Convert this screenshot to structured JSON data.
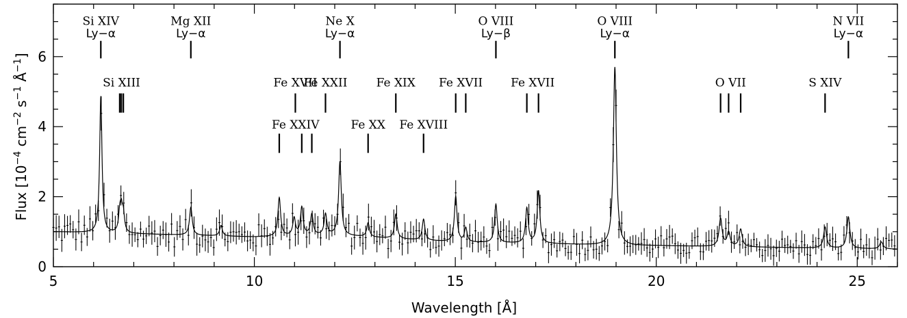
{
  "chart_data": {
    "type": "scatter",
    "xlabel": "Wavelength [Å]",
    "ylabel_parts": [
      "Flux [10",
      "−4",
      " cm",
      "−2",
      " s",
      "−1",
      " Å",
      "−1",
      "]"
    ],
    "xlim": [
      5,
      26
    ],
    "ylim": [
      0,
      7.5
    ],
    "x_major_ticks": [
      5,
      10,
      15,
      20,
      25
    ],
    "x_tick_labels": [
      "5",
      "10",
      "15",
      "20",
      "25"
    ],
    "x_minor_step": 1,
    "y_major_ticks": [
      0,
      2,
      4,
      6
    ],
    "y_tick_labels": [
      "0",
      "2",
      "4",
      "6"
    ],
    "y_minor_step": 0.5,
    "line_ids": [
      {
        "ion": "Si XIV",
        "transition": "Ly−α",
        "wavelengths": [
          6.18
        ],
        "y_ion": 6.9,
        "y_trans": 6.55,
        "y_mark": [
          5.95,
          6.45
        ]
      },
      {
        "ion": "Mg XII",
        "transition": "Ly−α",
        "wavelengths": [
          8.42
        ],
        "y_ion": 6.9,
        "y_trans": 6.55,
        "y_mark": [
          5.95,
          6.45
        ]
      },
      {
        "ion": "Ne X",
        "transition": "Ly−α",
        "wavelengths": [
          12.13
        ],
        "y_ion": 6.9,
        "y_trans": 6.55,
        "y_mark": [
          5.95,
          6.45
        ]
      },
      {
        "ion": "O VIII",
        "transition": "Ly−β",
        "wavelengths": [
          16.01
        ],
        "y_ion": 6.9,
        "y_trans": 6.55,
        "y_mark": [
          5.95,
          6.45
        ]
      },
      {
        "ion": "O VIII",
        "transition": "Ly−α",
        "wavelengths": [
          18.97
        ],
        "y_ion": 6.9,
        "y_trans": 6.55,
        "y_mark": [
          5.95,
          6.45
        ]
      },
      {
        "ion": "N VII",
        "transition": "Ly−α",
        "wavelengths": [
          24.78
        ],
        "y_ion": 6.9,
        "y_trans": 6.55,
        "y_mark": [
          5.95,
          6.45
        ]
      },
      {
        "ion": "Si XIII",
        "transition": "",
        "wavelengths": [
          6.65,
          6.69,
          6.74
        ],
        "y_ion": 5.15,
        "y_trans": null,
        "y_mark": [
          4.4,
          4.95
        ]
      },
      {
        "ion": "Fe XVII",
        "transition": "",
        "wavelengths": [
          11.02
        ],
        "y_ion": 5.15,
        "y_trans": null,
        "y_mark": [
          4.4,
          4.95
        ]
      },
      {
        "ion": "Fe XXII",
        "transition": "",
        "wavelengths": [
          11.77
        ],
        "y_ion": 5.15,
        "y_trans": null,
        "y_mark": [
          4.4,
          4.95
        ]
      },
      {
        "ion": "Fe XIX",
        "transition": "",
        "wavelengths": [
          13.52
        ],
        "y_ion": 5.15,
        "y_trans": null,
        "y_mark": [
          4.4,
          4.95
        ]
      },
      {
        "ion": "Fe XVII",
        "transition": "",
        "wavelengths": [
          15.01,
          15.26
        ],
        "y_ion": 5.15,
        "y_trans": null,
        "y_mark": [
          4.4,
          4.95
        ]
      },
      {
        "ion": "Fe XVII",
        "transition": "",
        "wavelengths": [
          16.78,
          17.07
        ],
        "y_ion": 5.15,
        "y_trans": null,
        "y_mark": [
          4.4,
          4.95
        ]
      },
      {
        "ion": "O VII",
        "transition": "",
        "wavelengths": [
          21.6,
          21.8,
          22.1
        ],
        "y_ion": 5.15,
        "y_trans": null,
        "y_mark": [
          4.4,
          4.95
        ]
      },
      {
        "ion": "S XIV",
        "transition": "",
        "wavelengths": [
          24.2
        ],
        "y_ion": 5.15,
        "y_trans": null,
        "y_mark": [
          4.4,
          4.95
        ]
      },
      {
        "ion": "Fe XXIV",
        "transition": "",
        "wavelengths": [
          10.62,
          11.18,
          11.43
        ],
        "y_ion": 3.95,
        "y_trans": null,
        "y_mark": [
          3.25,
          3.8
        ]
      },
      {
        "ion": "Fe XX",
        "transition": "",
        "wavelengths": [
          12.83
        ],
        "y_ion": 3.95,
        "y_trans": null,
        "y_mark": [
          3.25,
          3.8
        ]
      },
      {
        "ion": "Fe XVIII",
        "transition": "",
        "wavelengths": [
          14.21
        ],
        "y_ion": 3.95,
        "y_trans": null,
        "y_mark": [
          3.25,
          3.8
        ]
      }
    ],
    "model": {
      "name": "model",
      "continuum": [
        [
          5.0,
          1.0
        ],
        [
          10.0,
          0.85
        ],
        [
          12.0,
          0.9
        ],
        [
          15.0,
          0.7
        ],
        [
          17.5,
          0.65
        ],
        [
          19.0,
          0.6
        ],
        [
          20.0,
          0.6
        ],
        [
          26.0,
          0.5
        ]
      ],
      "lines": [
        [
          6.18,
          3.9,
          0.035
        ],
        [
          6.65,
          0.5,
          0.035
        ],
        [
          6.69,
          0.6,
          0.035
        ],
        [
          6.74,
          0.5,
          0.035
        ],
        [
          8.42,
          0.8,
          0.04
        ],
        [
          9.17,
          0.3,
          0.04
        ],
        [
          10.62,
          1.1,
          0.04
        ],
        [
          10.99,
          0.5,
          0.04
        ],
        [
          11.18,
          0.8,
          0.04
        ],
        [
          11.43,
          0.6,
          0.04
        ],
        [
          11.77,
          0.6,
          0.04
        ],
        [
          12.13,
          2.1,
          0.04
        ],
        [
          12.83,
          0.4,
          0.04
        ],
        [
          13.52,
          0.7,
          0.04
        ],
        [
          14.21,
          0.6,
          0.04
        ],
        [
          15.01,
          1.3,
          0.04
        ],
        [
          15.26,
          0.4,
          0.04
        ],
        [
          16.01,
          1.1,
          0.04
        ],
        [
          16.78,
          1.0,
          0.04
        ],
        [
          17.07,
          1.5,
          0.04
        ],
        [
          18.97,
          5.1,
          0.045
        ],
        [
          21.6,
          0.8,
          0.045
        ],
        [
          21.8,
          0.4,
          0.045
        ],
        [
          22.1,
          0.5,
          0.045
        ],
        [
          24.2,
          0.6,
          0.045
        ],
        [
          24.78,
          0.9,
          0.045
        ],
        [
          25.6,
          0.2,
          0.05
        ]
      ]
    },
    "data_points": {
      "x_start": 5.0,
      "x_end": 25.96,
      "x_step": 0.07,
      "err_lo": 0.15,
      "err_hi": 0.3,
      "scatter_amplitude": 0.38
    }
  }
}
